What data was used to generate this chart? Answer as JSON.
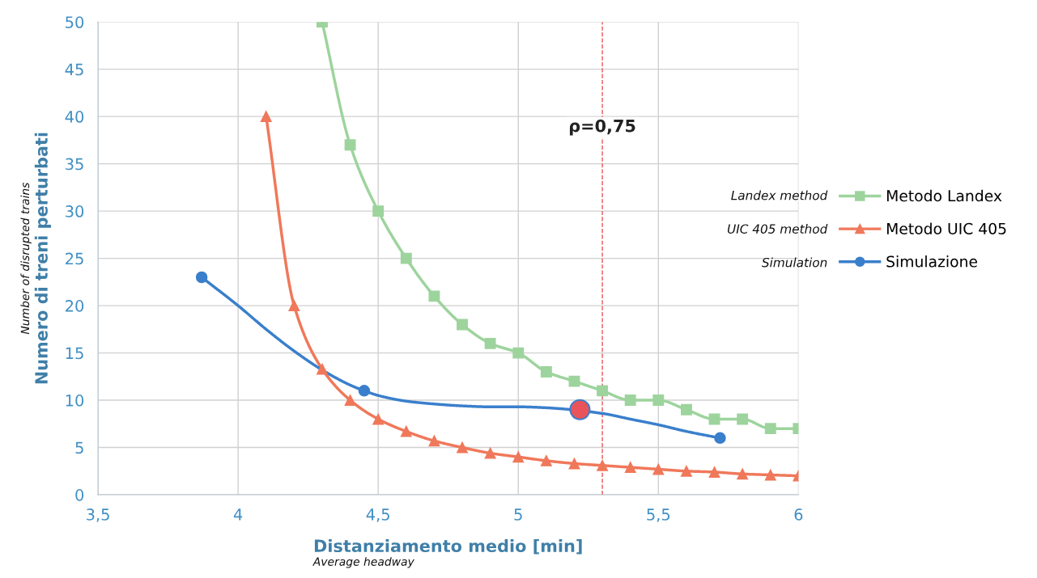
{
  "chart_data": {
    "type": "line",
    "xlabel": "Distanziamento medio [min]",
    "ylabel": "Numero di treni perturbati",
    "annotations": [
      "Number of disrupted trains",
      "Average headway",
      "Landex method",
      "UIC 405 method",
      "Simulation",
      {
        "text": "ρ=0,75",
        "x": 5.3,
        "y": 38
      }
    ],
    "series": [
      {
        "name": "Metodo Landex",
        "color": "#9dd49d",
        "marker": "square",
        "x": [
          4.3,
          4.4,
          4.5,
          4.6,
          4.7,
          4.8,
          4.9,
          5.0,
          5.1,
          5.2,
          5.3,
          5.4,
          5.5,
          5.6,
          5.7,
          5.8,
          5.9,
          6.0
        ],
        "values": [
          50,
          37,
          30,
          25,
          21,
          18,
          16,
          15,
          13,
          12,
          11,
          10,
          10,
          9,
          8,
          8,
          7,
          7
        ]
      },
      {
        "name": "Metodo UIC 405",
        "color": "#f0785a",
        "marker": "triangle",
        "x": [
          4.1,
          4.2,
          4.3,
          4.4,
          4.5,
          4.6,
          4.7,
          4.8,
          4.9,
          5.0,
          5.1,
          5.2,
          5.3,
          5.4,
          5.5,
          5.6,
          5.7,
          5.8,
          5.9,
          6.0
        ],
        "values": [
          40,
          20,
          13.3,
          10,
          8,
          6.7,
          5.7,
          5,
          4.4,
          4,
          3.6,
          3.3,
          3.1,
          2.9,
          2.7,
          2.5,
          2.4,
          2.2,
          2.1,
          2.0
        ]
      },
      {
        "name": "Simulazione",
        "color": "#3a7fcc",
        "marker": "none",
        "x": [
          3.87,
          4.0,
          4.1,
          4.2,
          4.3,
          4.4,
          4.45,
          4.5,
          4.6,
          4.7,
          4.8,
          4.9,
          5.0,
          5.1,
          5.3,
          5.4,
          5.5,
          5.6,
          5.72
        ],
        "values": [
          23,
          20,
          17.5,
          15.2,
          13.2,
          11.6,
          11,
          10.5,
          9.9,
          9.6,
          9.4,
          9.3,
          9.3,
          9.2,
          8.6,
          8,
          7.4,
          6.7,
          6
        ]
      },
      {
        "type": "scatter",
        "color": "#3a7fcc",
        "marker": "circle",
        "x": [
          3.87,
          4.45,
          5.72
        ],
        "values": [
          23,
          11,
          6
        ]
      },
      {
        "type": "scatter",
        "color": "#e8545a",
        "marker": "circle",
        "x": [
          5.22
        ],
        "values": [
          9
        ]
      }
    ],
    "ref_lines": [
      {
        "axis": "x",
        "value": 5.3,
        "color": "#e8545a",
        "line_style": "dashed"
      }
    ],
    "xlim": [
      3.5,
      6
    ],
    "xticks": [
      {
        "value": 3.5,
        "label": "3,5"
      },
      4,
      {
        "value": 4.5,
        "label": "4,5"
      },
      5,
      {
        "value": 5.5,
        "label": "5,5"
      },
      6
    ],
    "ylim": [
      0,
      50
    ],
    "yticks": [
      0,
      5,
      10,
      15,
      20,
      25,
      30,
      35,
      40,
      45,
      50
    ],
    "grid": true,
    "legend": "right"
  }
}
